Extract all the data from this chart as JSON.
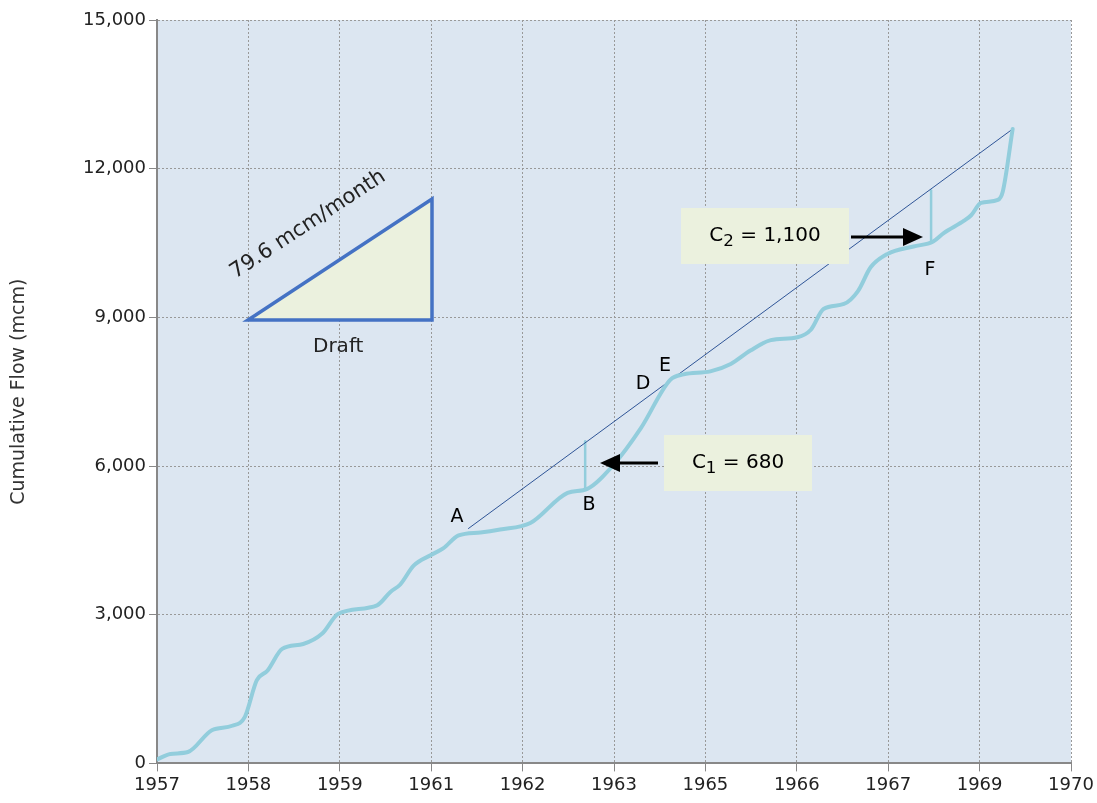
{
  "chart_data": {
    "type": "line",
    "ylabel": "Cumulative Flow (mcm)",
    "xlim": [
      1956.85,
      1969.85
    ],
    "xticks": [
      {
        "value": 1956.85,
        "label": "1957"
      },
      {
        "value": 1958.15,
        "label": "1958"
      },
      {
        "value": 1959.45,
        "label": "1959"
      },
      {
        "value": 1960.75,
        "label": "1961"
      },
      {
        "value": 1962.05,
        "label": "1962"
      },
      {
        "value": 1963.35,
        "label": "1963"
      },
      {
        "value": 1964.65,
        "label": "1965"
      },
      {
        "value": 1965.95,
        "label": "1966"
      },
      {
        "value": 1967.25,
        "label": "1967"
      },
      {
        "value": 1968.55,
        "label": "1969"
      },
      {
        "value": 1969.85,
        "label": "1970"
      }
    ],
    "ylim": [
      0,
      15000
    ],
    "yticks": [
      {
        "value": 0,
        "label": "0"
      },
      {
        "value": 3000,
        "label": "3,000"
      },
      {
        "value": 6000,
        "label": "6,000"
      },
      {
        "value": 9000,
        "label": "9,000"
      },
      {
        "value": 12000,
        "label": "12,000"
      },
      {
        "value": 15000,
        "label": "15,000"
      }
    ],
    "grid": true,
    "legend": false,
    "marker": "none",
    "series": [
      {
        "color": "#92cddc",
        "x": [
          1956.85,
          1957.04,
          1957.29,
          1957.63,
          1957.92,
          1958.1,
          1958.27,
          1958.42,
          1958.63,
          1958.93,
          1959.2,
          1959.43,
          1959.98,
          1960.17,
          1960.31,
          1960.5,
          1960.74,
          1960.92,
          1961.14,
          1961.45,
          1961.73,
          1962.16,
          1962.69,
          1962.97,
          1963.34,
          1963.73,
          1964.15,
          1964.34,
          1964.72,
          1965.01,
          1965.29,
          1965.58,
          1965.96,
          1966.15,
          1966.33,
          1966.62,
          1966.82,
          1967.0,
          1967.24,
          1967.61,
          1967.89,
          1968.04,
          1968.33,
          1968.43,
          1968.57,
          1968.81,
          1968.88,
          1969.02
        ],
        "values": [
          80,
          190,
          230,
          670,
          760,
          940,
          1680,
          1870,
          2310,
          2410,
          2620,
          3020,
          3190,
          3460,
          3610,
          3990,
          4200,
          4340,
          4600,
          4660,
          4720,
          4850,
          5460,
          5540,
          6020,
          6760,
          7740,
          7850,
          7910,
          8060,
          8330,
          8540,
          8600,
          8750,
          9170,
          9270,
          9530,
          10010,
          10280,
          10430,
          10530,
          10700,
          10950,
          11060,
          11310,
          11370,
          11540,
          12800
        ]
      },
      {
        "color": "#2f5597",
        "x": [
          1961.28,
          1969.02
        ],
        "values": [
          4740,
          12800
        ]
      },
      {
        "color": "#92cddc",
        "x": [
          1962.94,
          1962.94
        ],
        "values": [
          5540,
          6500
        ]
      },
      {
        "color": "#92cddc",
        "x": [
          1967.86,
          1967.86
        ],
        "values": [
          10530,
          11560
        ]
      }
    ],
    "annotations": [
      "79.6 mcm/month",
      "Draft",
      "A",
      "B",
      "D",
      "E",
      "F",
      "C$_{1}$ = 680",
      "C$_{2}$ = 1,100"
    ]
  }
}
